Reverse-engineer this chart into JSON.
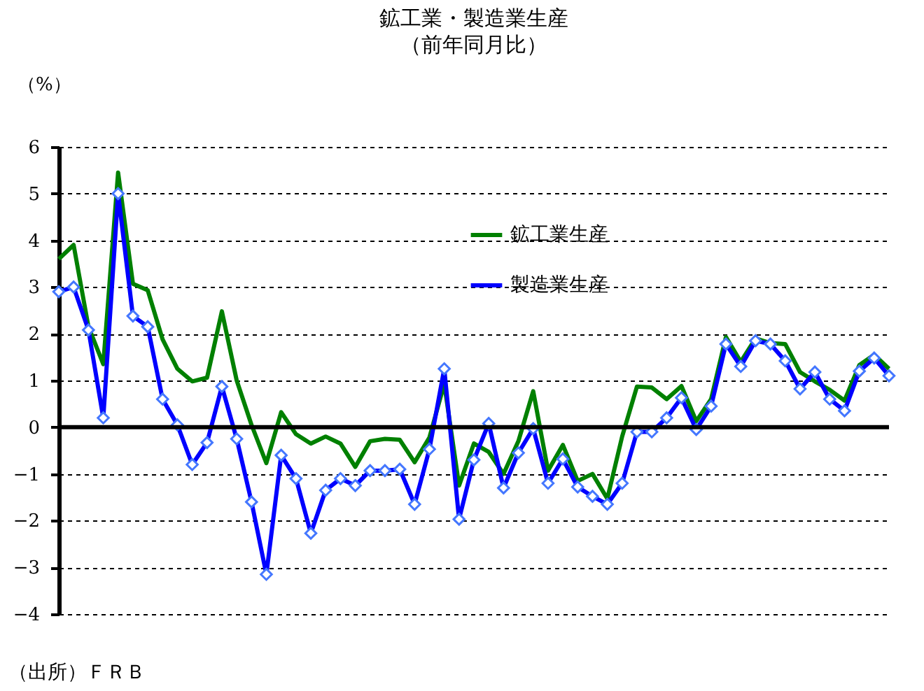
{
  "chart_data": {
    "type": "line",
    "title": "鉱工業・製造業生産",
    "subtitle": "（前年同月比）",
    "ylabel": "（%）",
    "categories": [
      null,
      null,
      null,
      null,
      null,
      null,
      null,
      null,
      null,
      null,
      null,
      null,
      null,
      null,
      null,
      null,
      null,
      null,
      null,
      null,
      null,
      null,
      null,
      null,
      null,
      null,
      null,
      null,
      null,
      null,
      null,
      null,
      null,
      null,
      null,
      null,
      null,
      null,
      null,
      null,
      null,
      null,
      null,
      null,
      null,
      null,
      null,
      null,
      null,
      null,
      null,
      null,
      null,
      null,
      null,
      null,
      null
    ],
    "series": [
      {
        "name": "鉱工業生産",
        "color": "#008000",
        "marker": "none",
        "values": [
          3.6,
          3.9,
          2.15,
          1.35,
          5.45,
          3.07,
          2.93,
          1.88,
          1.25,
          0.98,
          1.06,
          2.48,
          1.0,
          0.05,
          -0.77,
          0.32,
          -0.15,
          -0.35,
          -0.2,
          -0.35,
          -0.85,
          -0.3,
          -0.25,
          -0.27,
          -0.75,
          -0.22,
          0.93,
          -1.25,
          -0.35,
          -0.53,
          -1.0,
          -0.3,
          0.77,
          -0.93,
          -0.38,
          -1.15,
          -1.0,
          -1.53,
          -0.2,
          0.87,
          0.85,
          0.6,
          0.88,
          0.13,
          0.6,
          1.93,
          1.4,
          1.9,
          1.8,
          1.78,
          1.18,
          0.98,
          0.8,
          0.57,
          1.33,
          1.55,
          1.25
        ]
      },
      {
        "name": "製造業生産",
        "color": "#0000ff",
        "marker": "diamond",
        "values": [
          2.9,
          3.0,
          2.08,
          0.2,
          5.0,
          2.38,
          2.15,
          0.6,
          0.05,
          -0.8,
          -0.33,
          0.87,
          -0.25,
          -1.6,
          -3.15,
          -0.6,
          -1.1,
          -2.27,
          -1.35,
          -1.1,
          -1.25,
          -0.93,
          -0.93,
          -0.9,
          -1.65,
          -0.47,
          1.25,
          -1.97,
          -0.7,
          0.08,
          -1.3,
          -0.55,
          -0.03,
          -1.2,
          -0.68,
          -1.28,
          -1.48,
          -1.65,
          -1.2,
          -0.1,
          -0.1,
          0.2,
          0.63,
          -0.05,
          0.45,
          1.78,
          1.3,
          1.85,
          1.78,
          1.42,
          0.82,
          1.18,
          0.6,
          0.35,
          1.2,
          1.48,
          1.1
        ]
      }
    ],
    "ylim": [
      -4,
      6
    ],
    "yticks": [
      -4,
      -3,
      -2,
      -1,
      0,
      1,
      2,
      3,
      4,
      5,
      6
    ],
    "grid": "y",
    "legend": "top",
    "tick_labels": "y",
    "ref_lines": [
      {
        "axis": "y",
        "value": 0
      }
    ],
    "annotations": [
      "（出所）ＦＲＢ"
    ]
  }
}
